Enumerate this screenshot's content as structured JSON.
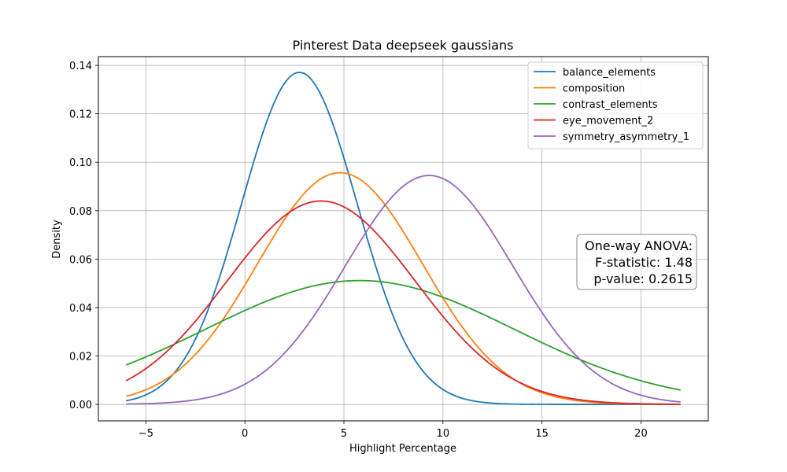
{
  "chart_data": {
    "type": "line",
    "title": "Pinterest Data deepseek gaussians",
    "xlabel": "Highlight Percentage",
    "ylabel": "Density",
    "xlim": [
      -7.4,
      23.4
    ],
    "ylim": [
      -0.0068,
      0.1436
    ],
    "x_range": [
      -6,
      22
    ],
    "xticks": [
      -5,
      0,
      5,
      10,
      15,
      20
    ],
    "yticks": [
      0.0,
      0.02,
      0.04,
      0.06,
      0.08,
      0.1,
      0.12,
      0.14
    ],
    "ytick_labels": [
      "0.00",
      "0.02",
      "0.04",
      "0.06",
      "0.08",
      "0.10",
      "0.12",
      "0.14"
    ],
    "grid": true,
    "legend_position": "top-right",
    "series": [
      {
        "name": "balance_elements",
        "color": "#1f77b4",
        "mean": 2.75,
        "sd": 2.91
      },
      {
        "name": "composition",
        "color": "#ff7f0e",
        "mean": 4.8,
        "sd": 4.17
      },
      {
        "name": "contrast_elements",
        "color": "#2ca02c",
        "mean": 5.8,
        "sd": 7.8
      },
      {
        "name": "eye_movement_2",
        "color": "#d62728",
        "mean": 3.85,
        "sd": 4.75
      },
      {
        "name": "symmetry_asymmetry_1",
        "color": "#9467bd",
        "mean": 9.3,
        "sd": 4.22
      }
    ],
    "annotation": {
      "lines": [
        "One-way ANOVA:",
        "F-statistic: 1.48",
        "p-value: 0.2615"
      ]
    }
  }
}
